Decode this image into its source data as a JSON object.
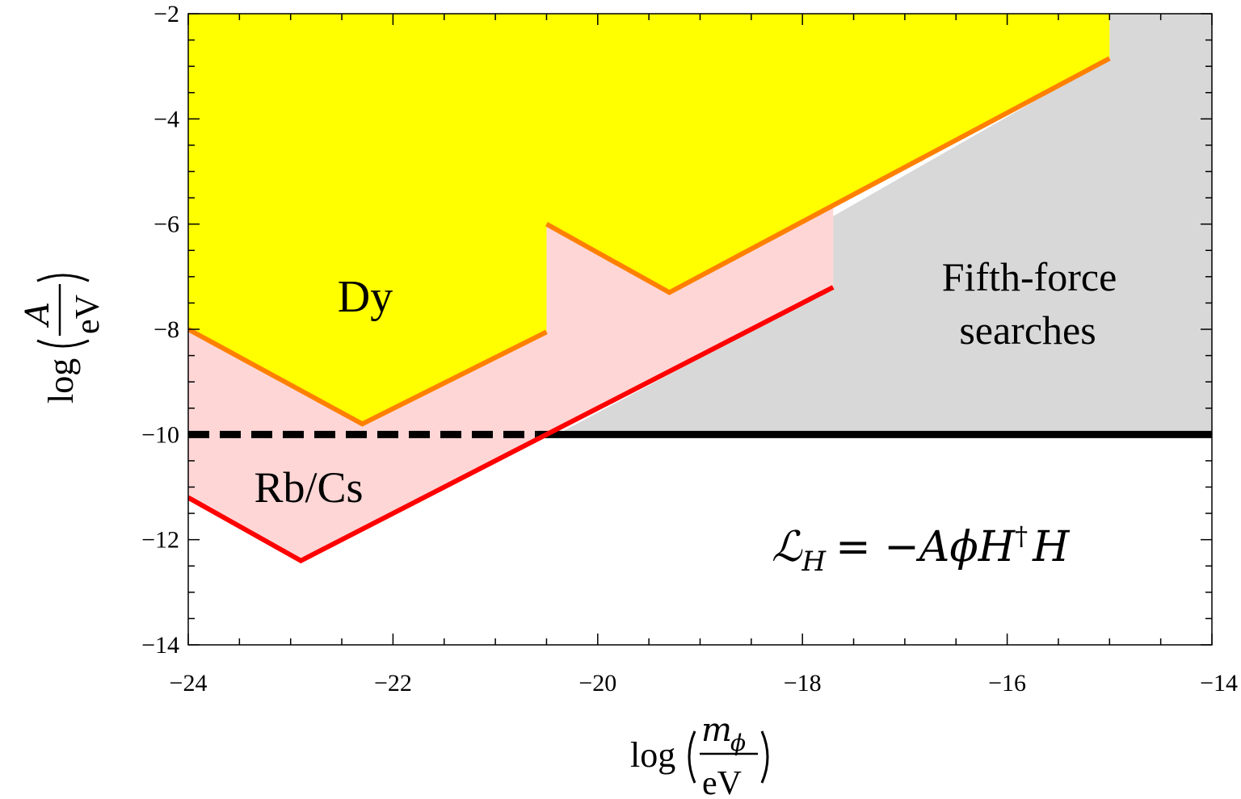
{
  "chart_data": {
    "type": "area",
    "xlim": [
      -24,
      -14
    ],
    "ylim": [
      -14,
      -2
    ],
    "x_ticks": [
      "−24",
      "−22",
      "−20",
      "−18",
      "−16",
      "−14"
    ],
    "x_tick_values": [
      -24,
      -22,
      -20,
      -18,
      -16,
      -14
    ],
    "y_ticks": [
      "−2",
      "−4",
      "−6",
      "−8",
      "−10",
      "−12",
      "−14"
    ],
    "y_tick_values": [
      -2,
      -4,
      -6,
      -8,
      -10,
      -12,
      -14
    ],
    "x_minor_step": 0.5,
    "y_minor_step": 0.5,
    "grid": false,
    "xlabel": {
      "prefix": "log",
      "numerator": "m",
      "numerator_sub": "ϕ",
      "denominator": "eV"
    },
    "ylabel": {
      "prefix": "log",
      "numerator": "A",
      "denominator": "eV"
    },
    "colors": {
      "dy_fill": "#ffff00",
      "dy_line": "#ff8000",
      "rbcs_fill": "#ffd6d6",
      "rbcs_line": "#ff0000",
      "fifth_force_fill": "#d8d8d8",
      "threshold_line": "#000000"
    },
    "series": [
      {
        "name": "Dy",
        "region": "above",
        "segments": [
          {
            "x": [
              -24,
              -22.3,
              -20.5
            ],
            "y": [
              -8.0,
              -9.8,
              -8.05
            ]
          },
          {
            "x": [
              -20.5,
              -19.3,
              -15.0
            ],
            "y": [
              -6.0,
              -7.3,
              -2.85
            ]
          }
        ]
      },
      {
        "name": "Rb/Cs",
        "region": "above",
        "segments": [
          {
            "x": [
              -24,
              -22.9,
              -17.7
            ],
            "y": [
              -11.2,
              -12.4,
              -7.2
            ]
          }
        ]
      },
      {
        "name": "Fifth-force searches",
        "region": "above",
        "boundary": {
          "x": [
            -20.4,
            -17.7,
            -17.7,
            -15.0,
            -15.0
          ],
          "y": [
            -10.0,
            -7.2,
            -5.85,
            -2.85,
            -2.0
          ]
        }
      },
      {
        "name": "threshold",
        "y": -10,
        "dashed_x": [
          -24,
          -20.6
        ],
        "solid_x": [
          -20.6,
          -14
        ]
      }
    ],
    "annotations": {
      "dy": "Dy",
      "rbcs": "Rb/Cs",
      "fifth_force_line1": "Fifth-force",
      "fifth_force_line2": "searches",
      "lagrangian": {
        "L": "ℒ",
        "L_sub": "H",
        "rhs": "= −AϕH",
        "dagger": "†",
        "rhs_end": "H"
      }
    }
  }
}
